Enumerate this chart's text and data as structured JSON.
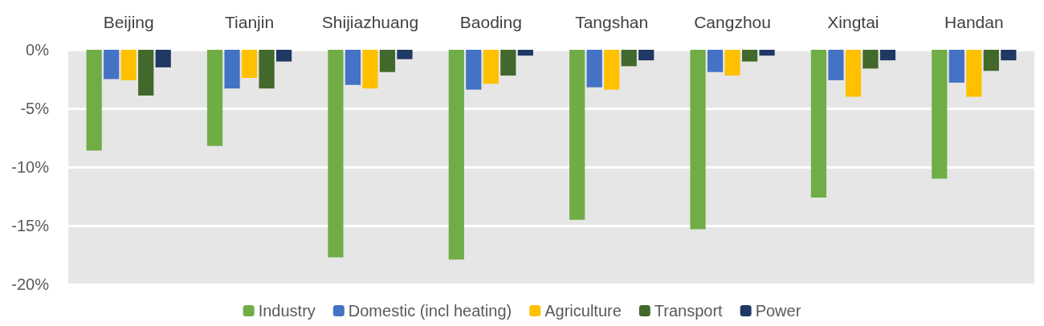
{
  "chart_data": {
    "type": "bar",
    "categories": [
      "Beijing",
      "Tianjin",
      "Shijiazhuang",
      "Baoding",
      "Tangshan",
      "Cangzhou",
      "Xingtai",
      "Handan"
    ],
    "series": [
      {
        "name": "Industry",
        "color": "#70ad47",
        "values": [
          -8.6,
          -8.2,
          -17.7,
          -17.9,
          -14.5,
          -15.3,
          -12.6,
          -11.0
        ]
      },
      {
        "name": "Domestic (incl heating)",
        "color": "#4472c4",
        "values": [
          -2.5,
          -3.3,
          -3.0,
          -3.4,
          -3.2,
          -1.9,
          -2.6,
          -2.8
        ]
      },
      {
        "name": "Agriculture",
        "color": "#ffc000",
        "values": [
          -2.6,
          -2.4,
          -3.3,
          -2.9,
          -3.4,
          -2.2,
          -4.0,
          -4.0
        ]
      },
      {
        "name": "Transport",
        "color": "#43682b",
        "values": [
          -3.9,
          -3.3,
          -1.9,
          -2.2,
          -1.4,
          -1.0,
          -1.6,
          -1.8
        ]
      },
      {
        "name": "Power",
        "color": "#203864",
        "values": [
          -1.5,
          -1.0,
          -0.8,
          -0.5,
          -0.9,
          -0.5,
          -0.9,
          -0.9
        ]
      }
    ],
    "ylim": [
      -20,
      0
    ],
    "yticks": [
      {
        "value": -20,
        "label": "-20%"
      },
      {
        "value": -15,
        "label": "-15%"
      },
      {
        "value": -10,
        "label": "-10%"
      },
      {
        "value": -5,
        "label": "-5%"
      },
      {
        "value": 0,
        "label": "0%"
      }
    ],
    "grid": "y",
    "legend": "bottom"
  }
}
